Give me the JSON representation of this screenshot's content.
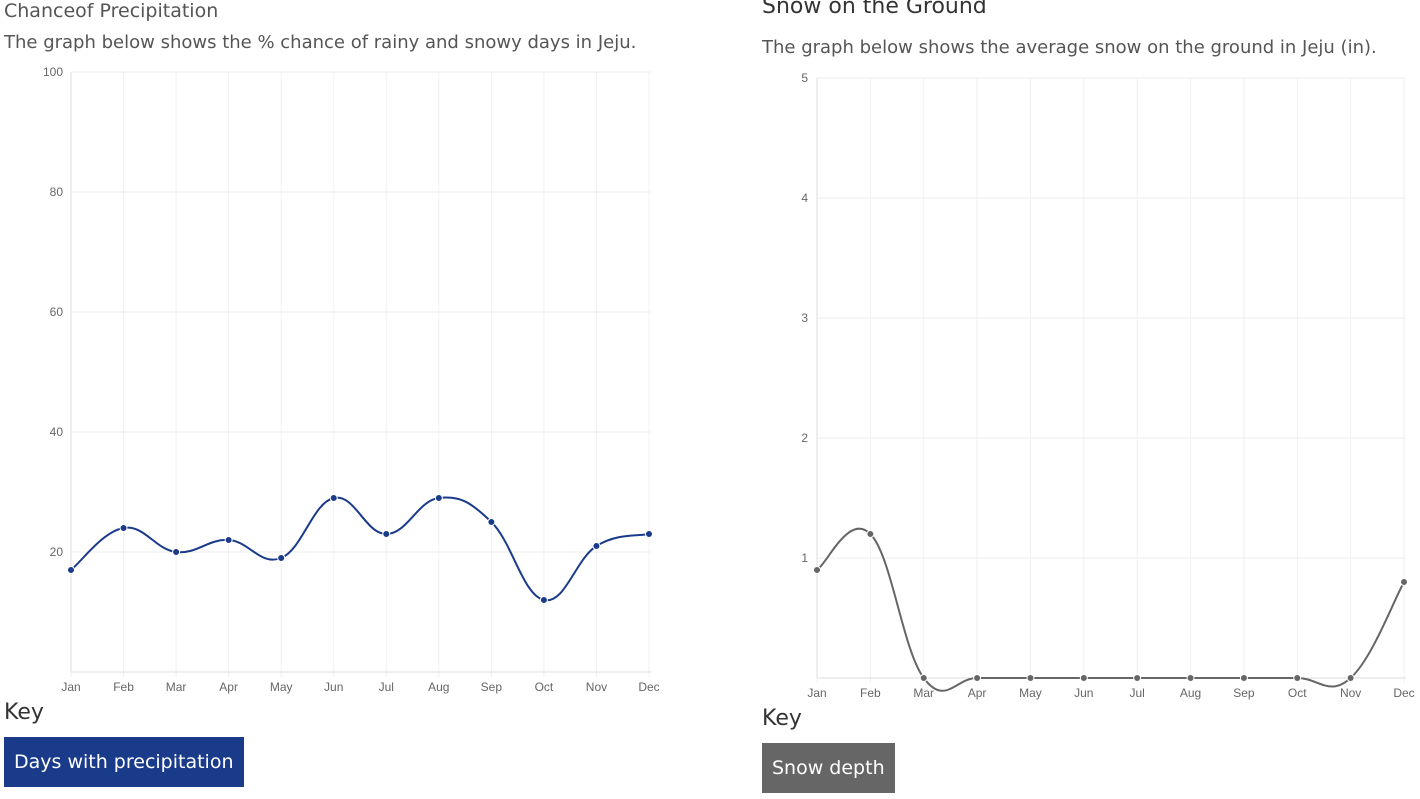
{
  "charts": {
    "precip": {
      "title": "Chanceof Precipitation",
      "description": "The graph below shows the % chance of rainy and snowy days in Jeju.",
      "key_label": "Key",
      "legend": {
        "label": "Days with precipitation",
        "color": "#1a3a8a"
      }
    },
    "snow": {
      "title": "Snow on the Ground",
      "description": "The graph below shows the average snow on the ground in Jeju (in).",
      "key_label": "Key",
      "legend": {
        "label": "Snow depth",
        "color": "#666666"
      }
    }
  },
  "chart_data": [
    {
      "type": "line",
      "categories": [
        "Jan",
        "Feb",
        "Mar",
        "Apr",
        "May",
        "Jun",
        "Jul",
        "Aug",
        "Sep",
        "Oct",
        "Nov",
        "Dec"
      ],
      "series": [
        {
          "name": "Days with precipitation",
          "values": [
            17,
            24,
            20,
            22,
            19,
            29,
            23,
            29,
            25,
            12,
            21,
            23
          ],
          "color": "#1a3a8a"
        }
      ],
      "ylim": [
        0,
        100
      ],
      "yticks": [
        20,
        40,
        60,
        80,
        100
      ],
      "grid": true
    },
    {
      "type": "line",
      "categories": [
        "Jan",
        "Feb",
        "Mar",
        "Apr",
        "May",
        "Jun",
        "Jul",
        "Aug",
        "Sep",
        "Oct",
        "Nov",
        "Dec"
      ],
      "series": [
        {
          "name": "Snow depth",
          "values": [
            0.9,
            1.2,
            0,
            0,
            0,
            0,
            0,
            0,
            0,
            0,
            0,
            0.8
          ],
          "color": "#666666"
        }
      ],
      "ylim": [
        0,
        5
      ],
      "yticks": [
        1,
        2,
        3,
        4,
        5
      ],
      "grid": true
    }
  ]
}
